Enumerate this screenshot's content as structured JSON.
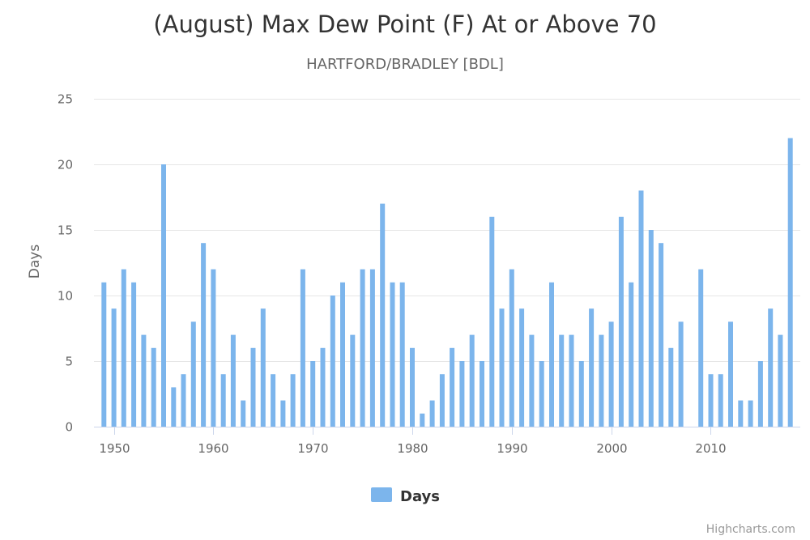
{
  "chart_data": {
    "type": "bar",
    "title": "(August) Max Dew Point (F) At or Above 70",
    "subtitle": "HARTFORD/BRADLEY [BDL]",
    "ylabel": "Days",
    "xlabel": "",
    "ylim": [
      0,
      25
    ],
    "yticks": [
      0,
      5,
      10,
      15,
      20,
      25
    ],
    "xticks": [
      1950,
      1960,
      1970,
      1980,
      1990,
      2000,
      2010
    ],
    "xlim": [
      1948,
      2019
    ],
    "grid": true,
    "legend_position": "bottom-center",
    "color": "#7cb5ec",
    "series": [
      {
        "name": "Days",
        "x": [
          1949,
          1950,
          1951,
          1952,
          1953,
          1954,
          1955,
          1956,
          1957,
          1958,
          1959,
          1960,
          1961,
          1962,
          1963,
          1964,
          1965,
          1966,
          1967,
          1968,
          1969,
          1970,
          1971,
          1972,
          1973,
          1974,
          1975,
          1976,
          1977,
          1978,
          1979,
          1980,
          1981,
          1982,
          1983,
          1984,
          1985,
          1986,
          1987,
          1988,
          1989,
          1990,
          1991,
          1992,
          1993,
          1994,
          1995,
          1996,
          1997,
          1998,
          1999,
          2000,
          2001,
          2002,
          2003,
          2004,
          2005,
          2006,
          2007,
          2008,
          2009,
          2010,
          2011,
          2012,
          2013,
          2014,
          2015,
          2016,
          2017,
          2018
        ],
        "values": [
          11,
          9,
          12,
          11,
          7,
          6,
          20,
          3,
          4,
          8,
          14,
          12,
          4,
          7,
          2,
          6,
          9,
          4,
          2,
          4,
          12,
          5,
          6,
          10,
          11,
          7,
          12,
          12,
          17,
          11,
          11,
          6,
          1,
          2,
          4,
          6,
          5,
          7,
          5,
          16,
          9,
          12,
          9,
          7,
          5,
          11,
          7,
          7,
          5,
          9,
          7,
          8,
          16,
          11,
          18,
          15,
          14,
          6,
          8,
          0,
          12,
          4,
          4,
          8,
          2,
          2,
          5,
          9,
          7,
          22
        ]
      }
    ]
  },
  "credits": "Highcharts.com"
}
